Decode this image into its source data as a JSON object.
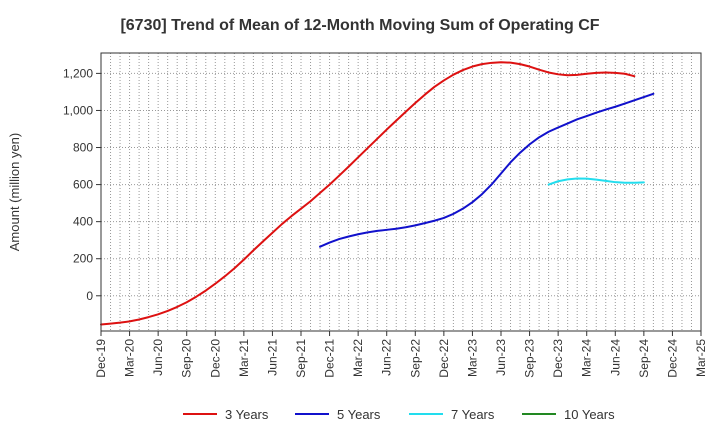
{
  "chart_data": {
    "type": "line",
    "title": "[6730]  Trend of Mean of 12-Month Moving Sum of Operating CF",
    "xlabel": "",
    "ylabel": "Amount (million yen)",
    "ylim": [
      -190,
      1310
    ],
    "yticks": [
      0,
      200,
      400,
      600,
      800,
      1000,
      1200
    ],
    "ytick_labels": [
      "0",
      "200",
      "400",
      "600",
      "800",
      "1,000",
      "1,200"
    ],
    "x_start": "Dec-19",
    "x_end": "Mar-25",
    "xtick_labels": [
      "Dec-19",
      "Mar-20",
      "Jun-20",
      "Sep-20",
      "Dec-20",
      "Mar-21",
      "Jun-21",
      "Sep-21",
      "Dec-21",
      "Mar-22",
      "Jun-22",
      "Sep-22",
      "Dec-22",
      "Mar-23",
      "Jun-23",
      "Sep-23",
      "Dec-23",
      "Mar-24",
      "Jun-24",
      "Sep-24",
      "Dec-24",
      "Mar-25"
    ],
    "grid": true,
    "legend_position": "bottom",
    "series": [
      {
        "name": "3 Years",
        "color": "#dd1111",
        "start": "Dec-19",
        "values": [
          -155,
          -150,
          -145,
          -138,
          -128,
          -115,
          -100,
          -82,
          -60,
          -35,
          -5,
          28,
          65,
          105,
          148,
          195,
          245,
          293,
          340,
          387,
          430,
          470,
          510,
          555,
          600,
          648,
          697,
          747,
          797,
          847,
          897,
          945,
          993,
          1040,
          1085,
          1127,
          1162,
          1193,
          1218,
          1237,
          1250,
          1257,
          1260,
          1258,
          1250,
          1237,
          1220,
          1205,
          1195,
          1190,
          1192,
          1198,
          1203,
          1205,
          1203,
          1198,
          1185
        ]
      },
      {
        "name": "5 Years",
        "color": "#1111cc",
        "start": "Nov-21",
        "values": [
          265,
          287,
          306,
          320,
          332,
          342,
          350,
          356,
          362,
          370,
          380,
          392,
          405,
          420,
          442,
          470,
          505,
          548,
          600,
          660,
          720,
          772,
          817,
          855,
          885,
          908,
          930,
          952,
          970,
          988,
          1005,
          1020,
          1037,
          1055,
          1072,
          1090
        ]
      },
      {
        "name": "7 Years",
        "color": "#22ddee",
        "start": "Nov-23",
        "values": [
          600,
          618,
          628,
          633,
          632,
          627,
          620,
          613,
          610,
          610,
          612
        ]
      },
      {
        "name": "10 Years",
        "color": "#228822",
        "start": "Nov-23",
        "values": []
      }
    ]
  }
}
